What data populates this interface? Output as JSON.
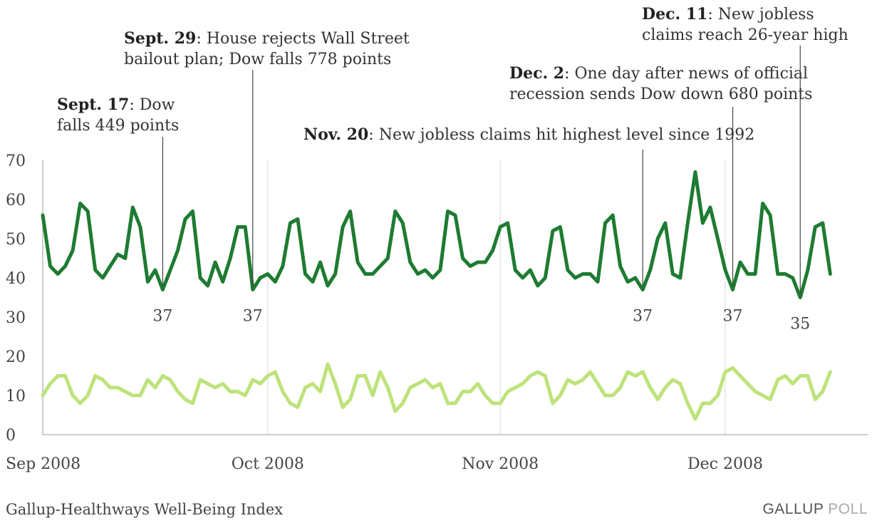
{
  "chart_data": {
    "type": "line",
    "title": "",
    "xlabel": "",
    "ylabel": "",
    "ylim": [
      0,
      70
    ],
    "y_ticks": [
      0,
      10,
      20,
      30,
      40,
      50,
      60,
      70
    ],
    "x_range": [
      "2008-09-01",
      "2008-12-20"
    ],
    "x_ticks": [
      {
        "date": "2008-09-01",
        "label": "Sep 2008"
      },
      {
        "date": "2008-10-01",
        "label": "Oct 2008"
      },
      {
        "date": "2008-11-01",
        "label": "Nov 2008"
      },
      {
        "date": "2008-12-01",
        "label": "Dec 2008"
      }
    ],
    "grid": "vertical lines at month starts",
    "series": [
      {
        "color": "#1e7b32",
        "start_date": "2008-09-01",
        "values": [
          56,
          43,
          41,
          43,
          47,
          59,
          57,
          42,
          40,
          43,
          46,
          45,
          58,
          53,
          39,
          42,
          37,
          42,
          47,
          55,
          57,
          40,
          38,
          44,
          39,
          45,
          53,
          53,
          37,
          40,
          41,
          39,
          43,
          54,
          55,
          41,
          39,
          44,
          38,
          41,
          53,
          57,
          44,
          41,
          41,
          43,
          45,
          57,
          54,
          44,
          41,
          42,
          40,
          42,
          57,
          56,
          45,
          43,
          44,
          44,
          47,
          53,
          54,
          42,
          40,
          42,
          38,
          40,
          52,
          53,
          42,
          40,
          41,
          41,
          39,
          54,
          56,
          43,
          39,
          40,
          37,
          42,
          50,
          54,
          41,
          40,
          54,
          67,
          54,
          58,
          50,
          42,
          37,
          44,
          41,
          41,
          59,
          56,
          41,
          41,
          40,
          35,
          42,
          53,
          54,
          41
        ]
      },
      {
        "color": "#bde37a",
        "start_date": "2008-09-01",
        "values": [
          10,
          13,
          15,
          15,
          10,
          8,
          10,
          15,
          14,
          12,
          12,
          11,
          10,
          10,
          14,
          12,
          15,
          14,
          11,
          9,
          8,
          14,
          13,
          12,
          13,
          11,
          11,
          10,
          14,
          13,
          15,
          16,
          11,
          8,
          7,
          12,
          13,
          11,
          18,
          13,
          7,
          9,
          15,
          15,
          10,
          16,
          12,
          6,
          8,
          12,
          13,
          14,
          12,
          13,
          8,
          8,
          11,
          11,
          13,
          10,
          8,
          8,
          11,
          12,
          13,
          15,
          16,
          15,
          8,
          10,
          14,
          13,
          14,
          16,
          13,
          10,
          10,
          12,
          16,
          15,
          16,
          12,
          9,
          12,
          14,
          13,
          8,
          4,
          8,
          8,
          10,
          16,
          17,
          15,
          13,
          11,
          10,
          9,
          14,
          15,
          13,
          15,
          15,
          9,
          11,
          16
        ]
      }
    ],
    "point_labels": [
      {
        "date": "2008-09-17",
        "value": 37,
        "text": "37"
      },
      {
        "date": "2008-09-29",
        "value": 37,
        "text": "37"
      },
      {
        "date": "2008-11-20",
        "value": 37,
        "text": "37"
      },
      {
        "date": "2008-12-02",
        "value": 37,
        "text": "37"
      },
      {
        "date": "2008-12-11",
        "value": 35,
        "text": "35"
      }
    ],
    "annotations": [
      {
        "id": "sep17",
        "date": "2008-09-17",
        "bold": "Sept. 17",
        "lines": [
          ": Dow",
          "falls 449 points"
        ]
      },
      {
        "id": "sep29",
        "date": "2008-09-29",
        "bold": "Sept. 29",
        "lines": [
          ": House rejects Wall Street",
          "bailout plan; Dow falls 778 points"
        ]
      },
      {
        "id": "nov20",
        "date": "2008-11-20",
        "bold": "Nov. 20",
        "lines": [
          ": New jobless claims hit highest level since 1992"
        ]
      },
      {
        "id": "dec2",
        "date": "2008-12-02",
        "bold": "Dec. 2",
        "lines": [
          ": One day after news of official",
          "recession sends Dow down 680 points"
        ]
      },
      {
        "id": "dec11",
        "date": "2008-12-11",
        "bold": "Dec. 11",
        "lines": [
          ": New jobless",
          "claims reach 26-year high"
        ]
      }
    ]
  },
  "footer": {
    "source": "Gallup-Healthways Well-Being Index",
    "brand": "GALLUP",
    "brand_poll": "POLL"
  }
}
